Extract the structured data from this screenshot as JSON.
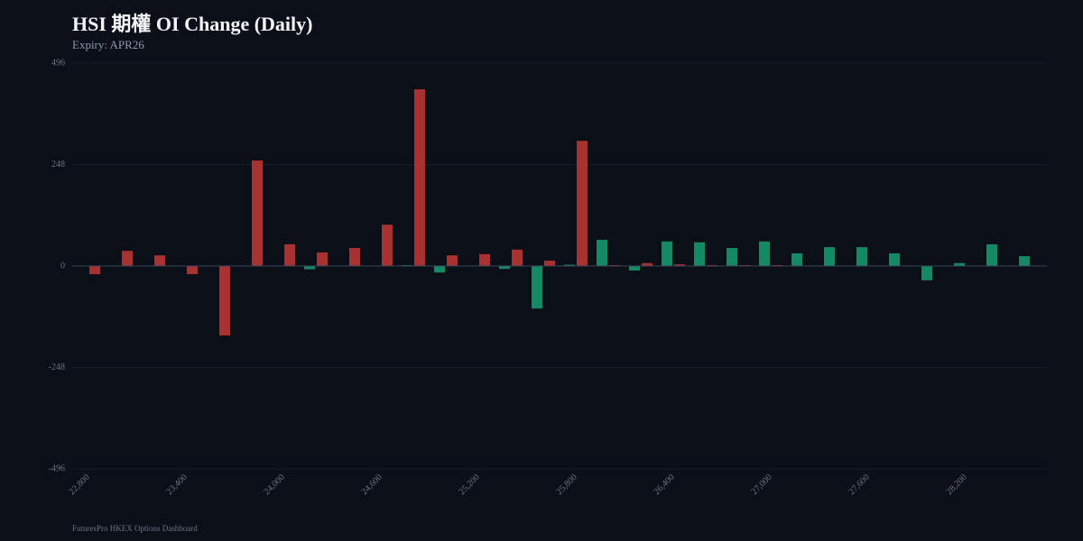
{
  "chart_data": {
    "type": "bar",
    "title": "HSI 期權 OI Change (Daily)",
    "subtitle": "Expiry: APR26",
    "footer": "FuturesPro HKEX Options Dashboard",
    "categories": [
      "22,800",
      null,
      null,
      "23,400",
      null,
      null,
      "24,000",
      null,
      null,
      "24,600",
      null,
      null,
      "25,200",
      null,
      null,
      "25,800",
      null,
      null,
      "26,400",
      null,
      null,
      "27,000",
      null,
      null,
      "27,600",
      null,
      null,
      "28,200",
      null,
      null
    ],
    "series": [
      {
        "color": "#138a63",
        "values": [
          0,
          0,
          0,
          0,
          0,
          0,
          0,
          -8,
          0,
          0,
          2,
          -16,
          0,
          -7,
          -104,
          3,
          64,
          -11,
          60,
          58,
          44,
          60,
          31,
          46,
          46,
          31,
          -35,
          7,
          53,
          24
        ]
      },
      {
        "color": "#a83232",
        "values": [
          -20,
          37,
          26,
          -20,
          -170,
          258,
          53,
          33,
          44,
          101,
          432,
          26,
          29,
          40,
          13,
          306,
          2,
          7,
          4,
          2,
          2,
          2,
          0,
          0,
          0,
          0,
          0,
          0,
          0,
          0
        ]
      }
    ],
    "ylim": [
      -496,
      496
    ],
    "yticks": [
      -496,
      -248,
      0,
      248,
      496
    ],
    "grid": true
  }
}
